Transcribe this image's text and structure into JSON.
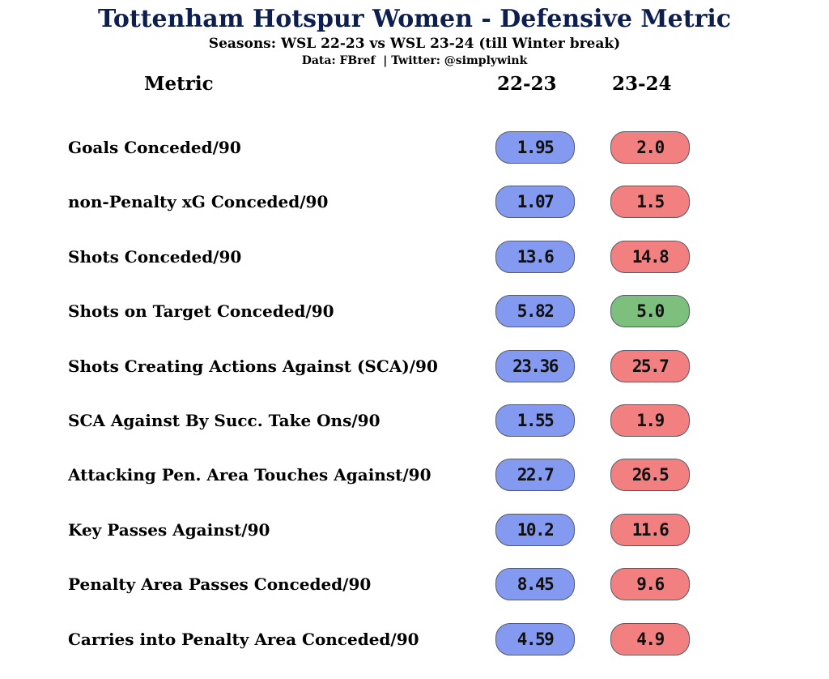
{
  "title": "Tottenham Hotspur Women - Defensive Metric",
  "subtitle": "Seasons: WSL 22-23 vs WSL 23-24 (till Winter break)",
  "source": "Data: FBref  | Twitter: @simplywink",
  "colors": {
    "title": "#0d1f4f",
    "season_22_23": "#8499f0",
    "worse": "#f28080",
    "better": "#7dbf7d"
  },
  "chart_data": {
    "type": "table",
    "columns": [
      "Metric",
      "22-23",
      "23-24"
    ],
    "rows": [
      {
        "metric": "Goals Conceded/90",
        "v2223": "1.95",
        "v2324": "2.0",
        "change": "worse"
      },
      {
        "metric": "non-Penalty xG Conceded/90",
        "v2223": "1.07",
        "v2324": "1.5",
        "change": "worse"
      },
      {
        "metric": "Shots Conceded/90",
        "v2223": "13.6",
        "v2324": "14.8",
        "change": "worse"
      },
      {
        "metric": "Shots on Target Conceded/90",
        "v2223": "5.82",
        "v2324": "5.0",
        "change": "better"
      },
      {
        "metric": "Shots Creating Actions Against (SCA)/90",
        "v2223": "23.36",
        "v2324": "25.7",
        "change": "worse"
      },
      {
        "metric": "SCA Against By Succ. Take Ons/90",
        "v2223": "1.55",
        "v2324": "1.9",
        "change": "worse"
      },
      {
        "metric": "Attacking Pen. Area Touches Against/90",
        "v2223": "22.7",
        "v2324": "26.5",
        "change": "worse"
      },
      {
        "metric": "Key Passes Against/90",
        "v2223": "10.2",
        "v2324": "11.6",
        "change": "worse"
      },
      {
        "metric": "Penalty Area Passes Conceded/90",
        "v2223": "8.45",
        "v2324": "9.6",
        "change": "worse"
      },
      {
        "metric": "Carries into Penalty Area Conceded/90",
        "v2223": "4.59",
        "v2324": "4.9",
        "change": "worse"
      }
    ]
  }
}
